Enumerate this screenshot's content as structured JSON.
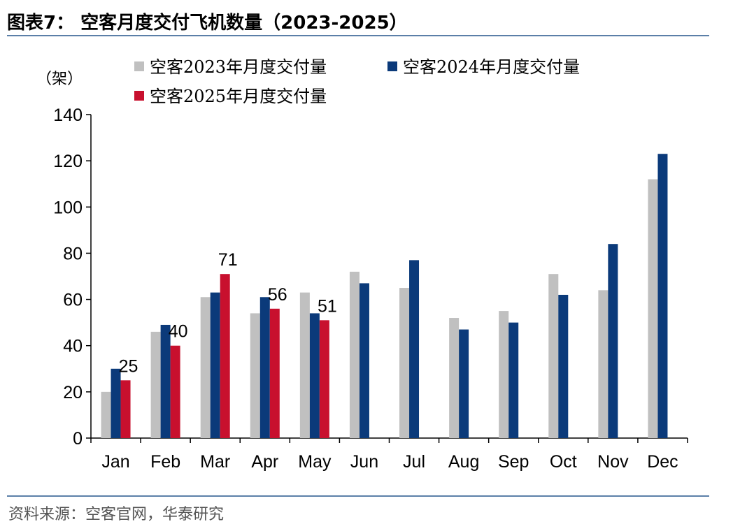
{
  "header": {
    "title": "图表7：  空客月度交付飞机数量（2023-2025）"
  },
  "footer": {
    "source": "资料来源：空客官网，华泰研究"
  },
  "chart_data": {
    "type": "bar",
    "unit_label": "（架）",
    "categories": [
      "Jan",
      "Feb",
      "Mar",
      "Apr",
      "May",
      "Jun",
      "Jul",
      "Aug",
      "Sep",
      "Oct",
      "Nov",
      "Dec"
    ],
    "ylim": [
      0,
      140
    ],
    "yticks": [
      0,
      20,
      40,
      60,
      80,
      100,
      120,
      140
    ],
    "grid": false,
    "legend_position": "top",
    "series": [
      {
        "name": "空客2023年月度交付量",
        "color": "#c0c0c0",
        "values": [
          20,
          46,
          61,
          54,
          63,
          72,
          65,
          52,
          55,
          71,
          64,
          112
        ]
      },
      {
        "name": "空客2024年月度交付量",
        "color": "#0b3a7a",
        "values": [
          30,
          49,
          63,
          61,
          54,
          67,
          77,
          47,
          50,
          62,
          84,
          123
        ]
      },
      {
        "name": "空客2025年月度交付量",
        "color": "#c8102e",
        "values": [
          25,
          40,
          71,
          56,
          51,
          null,
          null,
          null,
          null,
          null,
          null,
          null
        ],
        "data_labels": [
          25,
          40,
          71,
          56,
          51
        ]
      }
    ]
  }
}
